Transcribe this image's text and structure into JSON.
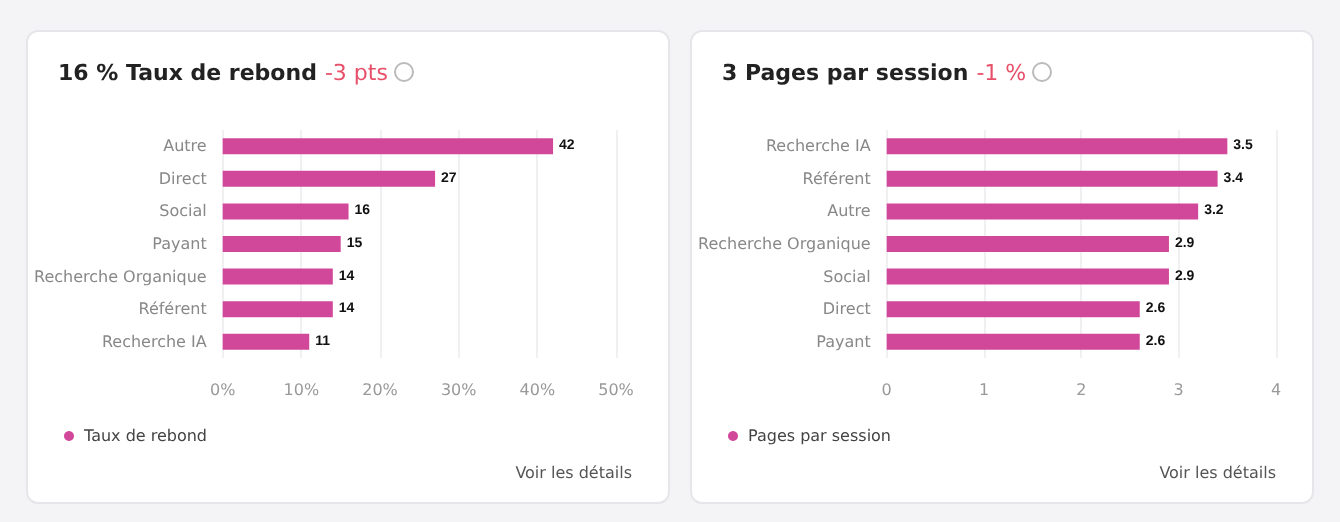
{
  "chart_data": [
    {
      "type": "bar",
      "orientation": "horizontal",
      "title": "16 % Taux de rebond",
      "subtitle": "-3 pts",
      "categories": [
        "Autre",
        "Direct",
        "Social",
        "Payant",
        "Recherche Organique",
        "Référent",
        "Recherche IA"
      ],
      "series": [
        {
          "name": "Taux de rebond",
          "color": "#d1479a",
          "values": [
            42,
            27,
            16,
            15,
            14,
            14,
            11
          ]
        }
      ],
      "xlim": [
        0,
        50
      ],
      "xticks": [
        {
          "value": 0,
          "label": "0%"
        },
        {
          "value": 10,
          "label": "10%"
        },
        {
          "value": 20,
          "label": "20%"
        },
        {
          "value": 30,
          "label": "30%"
        },
        {
          "value": 40,
          "label": "40%"
        },
        {
          "value": 50,
          "label": "50%"
        }
      ],
      "grid": "x",
      "legend": "bottom left",
      "data_labels": true,
      "annotations": [
        "Voir les détails"
      ]
    },
    {
      "type": "bar",
      "orientation": "horizontal",
      "title": "3 Pages par session",
      "subtitle": "-1 %",
      "categories": [
        "Recherche IA",
        "Référent",
        "Autre",
        "Recherche Organique",
        "Social",
        "Direct",
        "Payant"
      ],
      "series": [
        {
          "name": "Pages par session",
          "color": "#d1479a",
          "values": [
            3.5,
            3.4,
            3.2,
            2.9,
            2.9,
            2.6,
            2.6
          ]
        }
      ],
      "xlim": [
        0,
        4
      ],
      "xticks": [
        0,
        1,
        2,
        3,
        4
      ],
      "grid": "x",
      "legend": "bottom left",
      "data_labels": true,
      "annotations": [
        "Voir les détails"
      ]
    }
  ]
}
